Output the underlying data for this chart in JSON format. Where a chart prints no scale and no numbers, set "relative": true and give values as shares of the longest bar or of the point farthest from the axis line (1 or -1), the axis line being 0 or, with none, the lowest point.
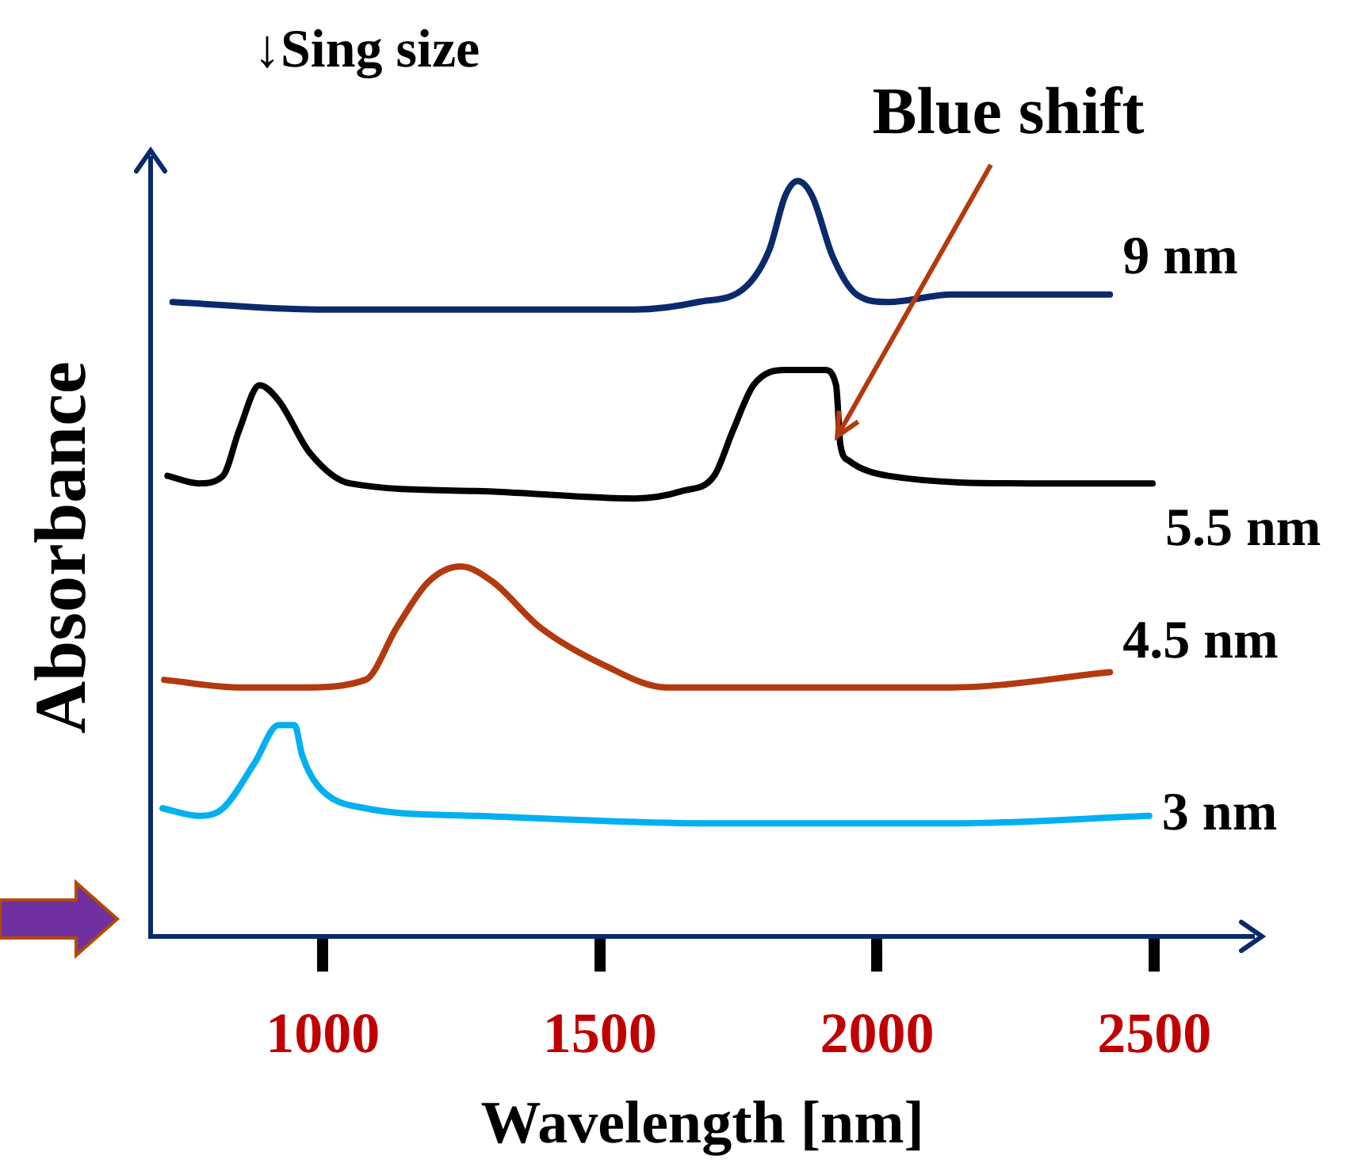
{
  "chart_data": {
    "type": "line",
    "relative": true,
    "xlabel": "Wavelength [nm]",
    "ylabel": "Absorbance",
    "xlim": [
      690,
      2680
    ],
    "xticks": [
      1000,
      1500,
      2000,
      2500
    ],
    "grid": false,
    "legend": false,
    "marker": "none",
    "line_style": "solid",
    "annotations": [
      "↓Sing size",
      {
        "text": "Blue shift",
        "x": 1934,
        "y": 0.65
      }
    ],
    "series": [
      {
        "name": "9 nm",
        "color": "#0a2a6b",
        "x": [
          729,
          991,
          1277,
          1563,
          1677,
          1763,
          1806,
          1834,
          1857,
          1883,
          1920,
          1963,
          2020,
          2134,
          2277,
          2420
        ],
        "values": [
          0.84,
          0.83,
          0.83,
          0.83,
          0.84,
          0.86,
          0.91,
          0.98,
          1,
          0.98,
          0.9,
          0.85,
          0.84,
          0.85,
          0.85,
          0.85
        ]
      },
      {
        "name": "5.5 nm",
        "color": "#000000",
        "x": [
          720,
          777,
          820,
          849,
          886,
          920,
          977,
          1049,
          1277,
          1563,
          1649,
          1706,
          1740,
          1777,
          1834,
          1906,
          1926,
          1934,
          1949,
          2020,
          2277,
          2497
        ],
        "values": [
          0.61,
          0.6,
          0.61,
          0.67,
          0.73,
          0.71,
          0.64,
          0.6,
          0.59,
          0.58,
          0.59,
          0.61,
          0.67,
          0.73,
          0.75,
          0.75,
          0.73,
          0.65,
          0.63,
          0.61,
          0.6,
          0.6
        ]
      },
      {
        "name": "4.5 nm",
        "color": "#b23a0e",
        "x": [
          714,
          849,
          963,
          1077,
          1134,
          1191,
          1249,
          1306,
          1391,
          1506,
          1620,
          1849,
          2134,
          2420
        ],
        "values": [
          0.34,
          0.33,
          0.33,
          0.34,
          0.41,
          0.47,
          0.49,
          0.47,
          0.41,
          0.36,
          0.33,
          0.33,
          0.33,
          0.35
        ]
      },
      {
        "name": "3 nm",
        "color": "#00b0f0",
        "x": [
          711,
          777,
          820,
          877,
          920,
          949,
          963,
          991,
          1077,
          1277,
          1706,
          2134,
          2491
        ],
        "values": [
          0.17,
          0.16,
          0.17,
          0.23,
          0.28,
          0.28,
          0.24,
          0.2,
          0.17,
          0.16,
          0.15,
          0.15,
          0.16
        ]
      }
    ]
  }
}
